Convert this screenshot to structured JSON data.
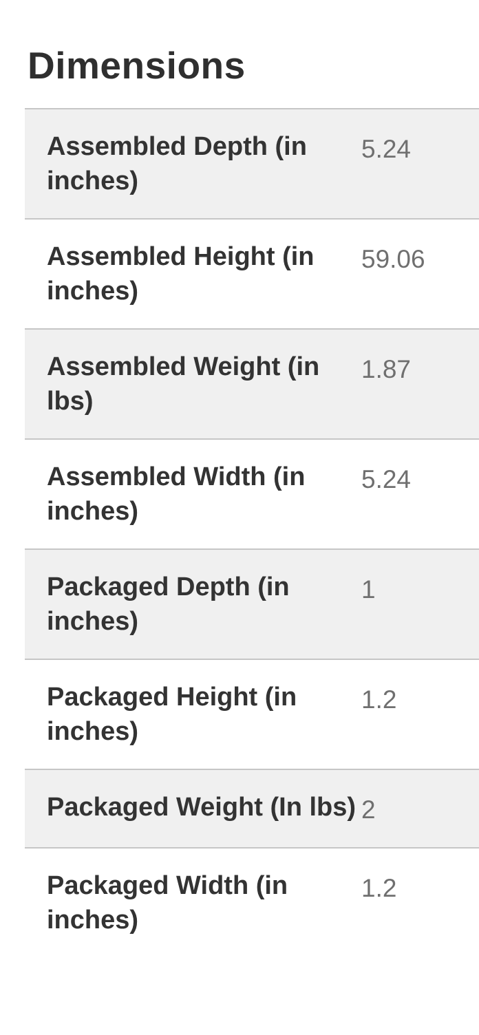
{
  "section": {
    "title": "Dimensions"
  },
  "table": {
    "rows": [
      {
        "label": "Assembled Depth (in inches)",
        "value": "5.24"
      },
      {
        "label": "Assembled Height (in inches)",
        "value": "59.06"
      },
      {
        "label": "Assembled Weight (in lbs)",
        "value": "1.87"
      },
      {
        "label": "Assembled Width (in inches)",
        "value": "5.24"
      },
      {
        "label": "Packaged Depth (in inches)",
        "value": "1"
      },
      {
        "label": "Packaged Height (in inches)",
        "value": "1.2"
      },
      {
        "label": "Packaged Weight (In lbs)",
        "value": "2"
      },
      {
        "label": "Packaged Width (in inches)",
        "value": "1.2"
      }
    ]
  },
  "colors": {
    "heading_text": "#2f2f2f",
    "label_text": "#333333",
    "value_text": "#6f6f6f",
    "alt_row_bg": "#f0f0f0",
    "row_border": "#c6c6c6",
    "page_bg": "#ffffff"
  }
}
